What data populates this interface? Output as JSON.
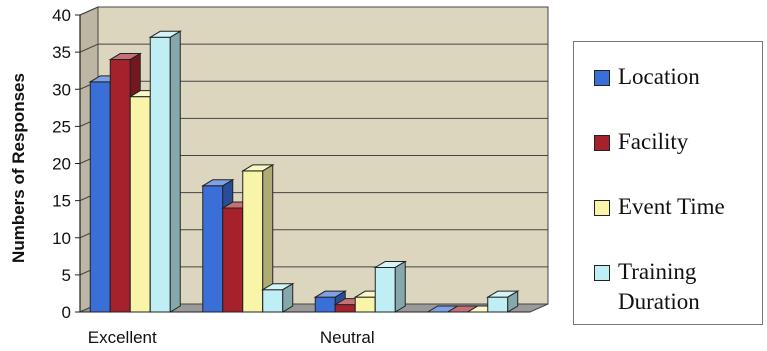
{
  "chart_data": {
    "type": "bar",
    "categories": [
      "Excellent",
      "",
      "Neutral",
      ""
    ],
    "series": [
      {
        "name": "Location",
        "values": [
          31,
          17,
          2,
          0
        ],
        "color": "#3a6fd8"
      },
      {
        "name": "Facility",
        "values": [
          34,
          14,
          1,
          0
        ],
        "color": "#a5222c"
      },
      {
        "name": "Event Time",
        "values": [
          29,
          19,
          2,
          0
        ],
        "color": "#f8f4a8"
      },
      {
        "name": "Training Duration",
        "values": [
          37,
          3,
          6,
          2
        ],
        "color": "#bfeef4"
      }
    ],
    "title": "",
    "xlabel": "",
    "ylabel": "Numbers of Responses",
    "ylim": [
      0,
      40
    ],
    "yticks": [
      0,
      5,
      10,
      15,
      20,
      25,
      30,
      35,
      40
    ],
    "grid": true,
    "legend_position": "right",
    "wall_color": "#ddd6bf",
    "floor_color": "#9a9a9a"
  },
  "legend": {
    "items": [
      {
        "label_lines": [
          "Location"
        ]
      },
      {
        "label_lines": [
          "Facility"
        ]
      },
      {
        "label_lines": [
          "Event Time"
        ]
      },
      {
        "label_lines": [
          "Training",
          "Duration"
        ]
      }
    ]
  }
}
